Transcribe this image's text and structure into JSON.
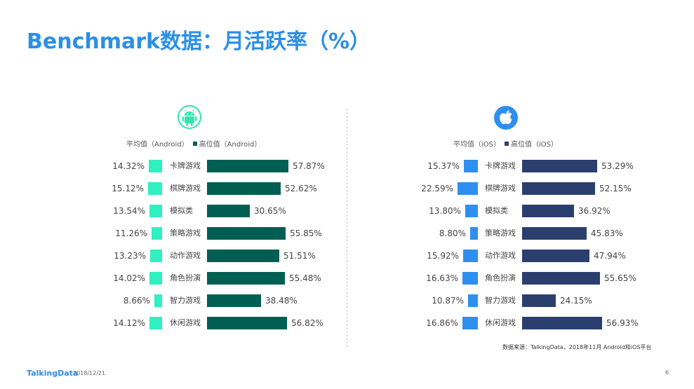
{
  "title": "Benchmark数据：月活跃率（%）",
  "footer": {
    "logo": "TalkingData",
    "date": "2018/12/21",
    "page": "6"
  },
  "source": "数据来源：TalkingData，2018年11月 Android和iOS平台",
  "colors": {
    "title": "#2b8fe6",
    "android_avg": "#2ef0c0",
    "android_high": "#005f52",
    "ios_avg": "#2e8ff0",
    "ios_high": "#2b3f6e",
    "android_icon": "#2ee6b2"
  },
  "icons": {
    "android": "android-icon",
    "ios": "apple-icon"
  },
  "chart_data": [
    {
      "type": "bar",
      "platform": "Android",
      "legend": [
        "平均值（Android）",
        "高位值（Android）"
      ],
      "categories": [
        "卡牌游戏",
        "棋牌游戏",
        "模拟类",
        "策略游戏",
        "动作游戏",
        "角色扮演",
        "智力游戏",
        "休闲游戏"
      ],
      "series": [
        {
          "name": "平均值（Android）",
          "values": [
            14.32,
            15.12,
            13.54,
            11.26,
            13.23,
            14.02,
            8.66,
            14.12
          ],
          "labels": [
            "14.32%",
            "15.12%",
            "13.54%",
            "11.26%",
            "13.23%",
            "14.02%",
            "8.66%",
            "14.12%"
          ]
        },
        {
          "name": "高位值（Android）",
          "values": [
            57.87,
            52.62,
            30.65,
            55.85,
            51.51,
            55.48,
            38.48,
            56.82
          ],
          "labels": [
            "57.87%",
            "52.62%",
            "30.65%",
            "55.85%",
            "51.51%",
            "55.48%",
            "38.48%",
            "56.82%"
          ]
        }
      ]
    },
    {
      "type": "bar",
      "platform": "iOS",
      "legend": [
        "平均值（iOS）",
        "高位值（iOS）"
      ],
      "categories": [
        "卡牌游戏",
        "棋牌游戏",
        "模拟类",
        "策略游戏",
        "动作游戏",
        "角色扮演",
        "智力游戏",
        "休闲游戏"
      ],
      "series": [
        {
          "name": "平均值（iOS）",
          "values": [
            15.37,
            22.59,
            13.8,
            8.8,
            15.92,
            16.63,
            10.87,
            16.86
          ],
          "labels": [
            "15.37%",
            "22.59%",
            "13.80%",
            "8.80%",
            "15.92%",
            "16.63%",
            "10.87%",
            "16.86%"
          ]
        },
        {
          "name": "高位值（iOS）",
          "values": [
            53.29,
            52.15,
            36.92,
            45.83,
            47.94,
            55.65,
            24.15,
            56.93
          ],
          "labels": [
            "53.29%",
            "52.15%",
            "36.92%",
            "45.83%",
            "47.94%",
            "55.65%",
            "24.15%",
            "56.93%"
          ]
        }
      ]
    }
  ]
}
